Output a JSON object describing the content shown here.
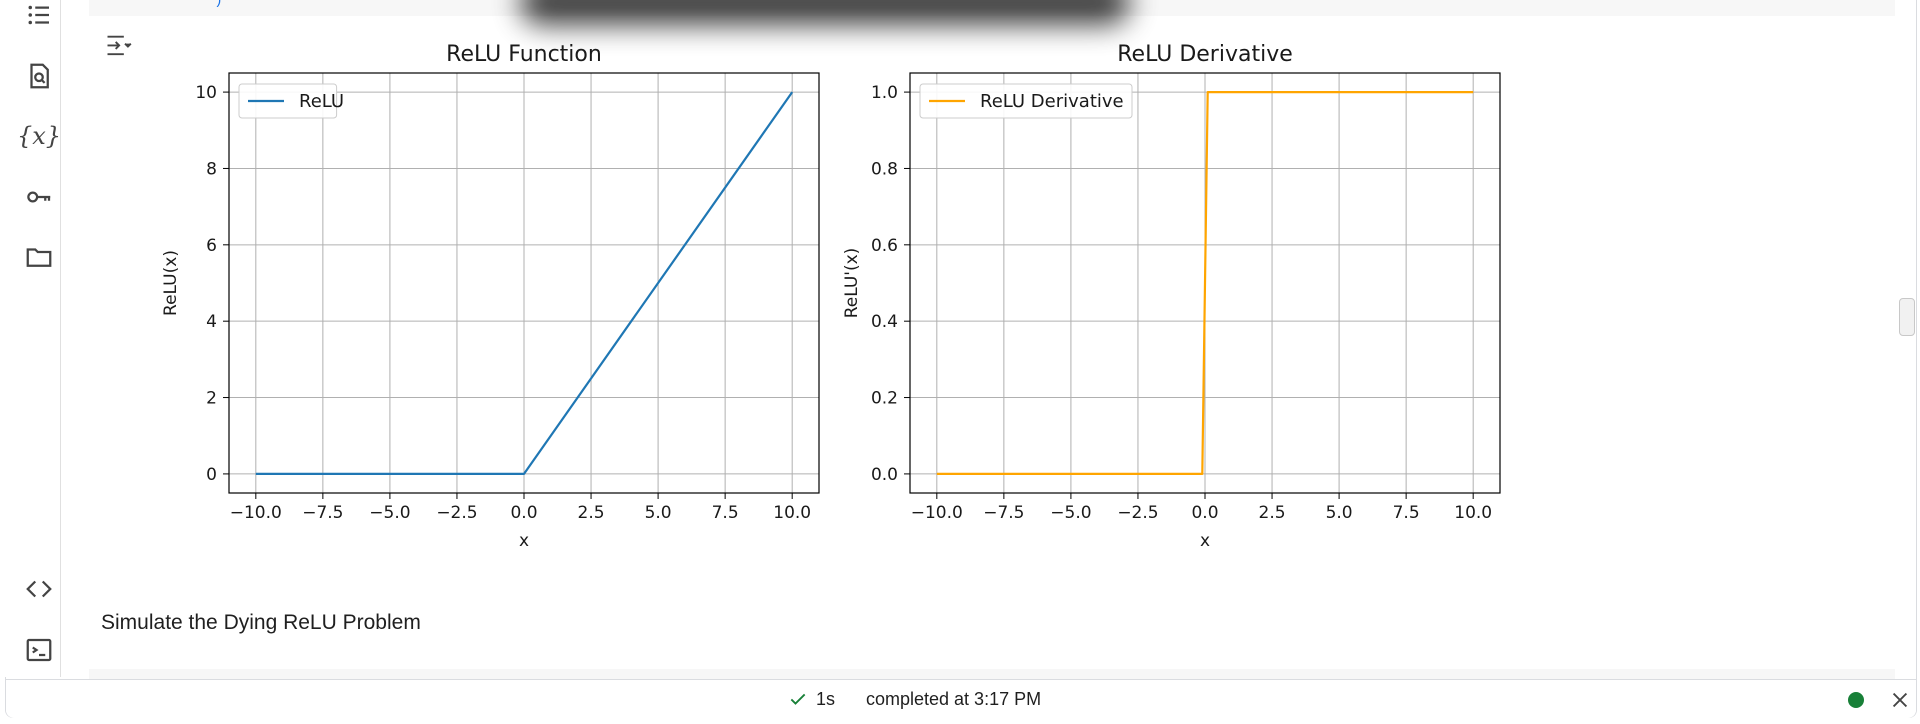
{
  "sidebar": {
    "icons": [
      "table-of-contents-icon",
      "find-replace-icon",
      "variables-icon",
      "secrets-key-icon",
      "files-folder-icon",
      "code-snippets-icon",
      "terminal-icon"
    ],
    "variables_label": "{x}"
  },
  "previous_cell": {
    "code_fragment_start": "  ",
    "code_fragment_blue": "\")"
  },
  "output": {
    "toggle_icon": "output-toggle-icon",
    "charts": [
      {
        "type": "line",
        "title": "ReLU Function",
        "xlabel": "x",
        "ylabel": "ReLU(x)",
        "xlim": [
          -11,
          11
        ],
        "ylim": [
          -0.5,
          10.5
        ],
        "xticks": [
          -10,
          -7.5,
          -5,
          -2.5,
          0,
          2.5,
          5,
          7.5,
          10
        ],
        "xtick_labels": [
          "−10.0",
          "−7.5",
          "−5.0",
          "−2.5",
          "0.0",
          "2.5",
          "5.0",
          "7.5",
          "10.0"
        ],
        "yticks": [
          0,
          2,
          4,
          6,
          8,
          10
        ],
        "ytick_labels": [
          "0",
          "2",
          "4",
          "6",
          "8",
          "10"
        ],
        "grid": true,
        "legend": "top-left",
        "series": [
          {
            "name": "ReLU",
            "color": "#1f77b4",
            "x": [
              -10,
              0,
              10
            ],
            "y": [
              0,
              0,
              10
            ]
          }
        ]
      },
      {
        "type": "line",
        "title": "ReLU Derivative",
        "xlabel": "x",
        "ylabel": "ReLU'(x)",
        "xlim": [
          -11,
          11
        ],
        "ylim": [
          -0.05,
          1.05
        ],
        "xticks": [
          -10,
          -7.5,
          -5,
          -2.5,
          0,
          2.5,
          5,
          7.5,
          10
        ],
        "xtick_labels": [
          "−10.0",
          "−7.5",
          "−5.0",
          "−2.5",
          "0.0",
          "2.5",
          "5.0",
          "7.5",
          "10.0"
        ],
        "yticks": [
          0,
          0.2,
          0.4,
          0.6,
          0.8,
          1.0
        ],
        "ytick_labels": [
          "0.0",
          "0.2",
          "0.4",
          "0.6",
          "0.8",
          "1.0"
        ],
        "grid": true,
        "legend": "top-left",
        "series": [
          {
            "name": "ReLU Derivative",
            "color": "#ffa500",
            "x": [
              -10,
              -0.1,
              0.1,
              10
            ],
            "y": [
              0,
              0,
              1,
              1
            ]
          }
        ]
      }
    ]
  },
  "chart_data": [
    {
      "type": "line",
      "title": "ReLU Function",
      "xlabel": "x",
      "ylabel": "ReLU(x)",
      "xlim": [
        -11,
        11
      ],
      "ylim": [
        -0.5,
        10.5
      ],
      "grid": true,
      "legend": "top-left",
      "series": [
        {
          "name": "ReLU",
          "x": [
            -10,
            0,
            10
          ],
          "y": [
            0,
            0,
            10
          ]
        }
      ]
    },
    {
      "type": "line",
      "title": "ReLU Derivative",
      "xlabel": "x",
      "ylabel": "ReLU'(x)",
      "xlim": [
        -11,
        11
      ],
      "ylim": [
        -0.05,
        1.05
      ],
      "grid": true,
      "legend": "top-left",
      "series": [
        {
          "name": "ReLU Derivative",
          "x": [
            -10,
            -0.1,
            0.1,
            10
          ],
          "y": [
            0,
            0,
            1,
            1
          ]
        }
      ]
    }
  ],
  "markdown_cell": {
    "text": "Simulate the Dying ReLU Problem"
  },
  "status_bar": {
    "duration": "1s",
    "completed_text": "completed at 3:17 PM",
    "connection_status_color": "#188038"
  }
}
